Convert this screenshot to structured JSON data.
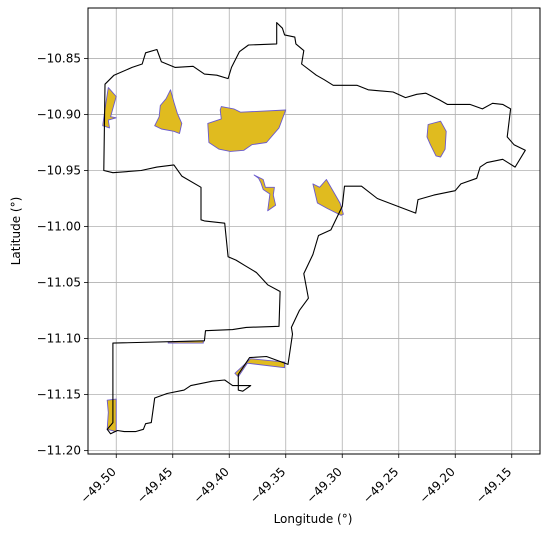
{
  "chart_data": {
    "type": "map",
    "xlabel": "Longitude (°)",
    "ylabel": "Latitude (°)",
    "xlim": [
      -49.525,
      -49.125
    ],
    "ylim": [
      -11.203,
      -10.805
    ],
    "xticks": [
      -49.5,
      -49.45,
      -49.4,
      -49.35,
      -49.3,
      -49.25,
      -49.2,
      -49.15
    ],
    "yticks": [
      -10.85,
      -10.9,
      -10.95,
      -11.0,
      -11.05,
      -11.1,
      -11.15,
      -11.2
    ],
    "xtick_labels": [
      "−49.50",
      "−49.45",
      "−49.40",
      "−49.35",
      "−49.30",
      "−49.25",
      "−49.20",
      "−49.15"
    ],
    "ytick_labels": [
      "−10.85",
      "−10.90",
      "−10.95",
      "−11.00",
      "−11.05",
      "−11.10",
      "−11.15",
      "−11.20"
    ],
    "grid": true,
    "colors": {
      "boundary": "#000000",
      "patch_fill": "#e0bb1f",
      "patch_edge": "#6a5acd",
      "grid": "#b0b0b0"
    },
    "boundary": [
      [
        -49.51,
        -10.873
      ],
      [
        -49.502,
        -10.865
      ],
      [
        -49.486,
        -10.858
      ],
      [
        -49.477,
        -10.855
      ],
      [
        -49.474,
        -10.845
      ],
      [
        -49.464,
        -10.842
      ],
      [
        -49.46,
        -10.853
      ],
      [
        -49.448,
        -10.858
      ],
      [
        -49.432,
        -10.857
      ],
      [
        -49.422,
        -10.864
      ],
      [
        -49.411,
        -10.865
      ],
      [
        -49.401,
        -10.868
      ],
      [
        -49.398,
        -10.858
      ],
      [
        -49.391,
        -10.844
      ],
      [
        -49.383,
        -10.838
      ],
      [
        -49.358,
        -10.837
      ],
      [
        -49.358,
        -10.818
      ],
      [
        -49.353,
        -10.823
      ],
      [
        -49.351,
        -10.829
      ],
      [
        -49.342,
        -10.831
      ],
      [
        -49.341,
        -10.837
      ],
      [
        -49.334,
        -10.843
      ],
      [
        -49.336,
        -10.855
      ],
      [
        -49.323,
        -10.865
      ],
      [
        -49.316,
        -10.869
      ],
      [
        -49.308,
        -10.874
      ],
      [
        -49.287,
        -10.874
      ],
      [
        -49.277,
        -10.878
      ],
      [
        -49.255,
        -10.88
      ],
      [
        -49.244,
        -10.885
      ],
      [
        -49.234,
        -10.882
      ],
      [
        -49.226,
        -10.881
      ],
      [
        -49.214,
        -10.887
      ],
      [
        -49.207,
        -10.891
      ],
      [
        -49.187,
        -10.891
      ],
      [
        -49.176,
        -10.895
      ],
      [
        -49.167,
        -10.89
      ],
      [
        -49.158,
        -10.891
      ],
      [
        -49.151,
        -10.895
      ],
      [
        -49.154,
        -10.92
      ],
      [
        -49.148,
        -10.927
      ],
      [
        -49.138,
        -10.932
      ],
      [
        -49.147,
        -10.947
      ],
      [
        -49.158,
        -10.94
      ],
      [
        -49.172,
        -10.943
      ],
      [
        -49.178,
        -10.947
      ],
      [
        -49.181,
        -10.957
      ],
      [
        -49.195,
        -10.962
      ],
      [
        -49.2,
        -10.968
      ],
      [
        -49.219,
        -10.972
      ],
      [
        -49.233,
        -10.976
      ],
      [
        -49.235,
        -10.988
      ],
      [
        -49.269,
        -10.975
      ],
      [
        -49.283,
        -10.964
      ],
      [
        -49.298,
        -10.964
      ],
      [
        -49.3,
        -10.982
      ],
      [
        -49.31,
        -11.003
      ],
      [
        -49.321,
        -11.008
      ],
      [
        -49.326,
        -11.025
      ],
      [
        -49.334,
        -11.042
      ],
      [
        -49.33,
        -11.064
      ],
      [
        -49.338,
        -11.075
      ],
      [
        -49.345,
        -11.09
      ],
      [
        -49.344,
        -11.096
      ],
      [
        -49.348,
        -11.123
      ],
      [
        -49.367,
        -11.116
      ],
      [
        -49.382,
        -11.117
      ],
      [
        -49.392,
        -11.132
      ],
      [
        -49.392,
        -11.146
      ],
      [
        -49.388,
        -11.147
      ],
      [
        -49.381,
        -11.142
      ],
      [
        -49.397,
        -11.142
      ],
      [
        -49.404,
        -11.137
      ],
      [
        -49.415,
        -11.138
      ],
      [
        -49.434,
        -11.142
      ],
      [
        -49.44,
        -11.146
      ],
      [
        -49.455,
        -11.149
      ],
      [
        -49.466,
        -11.153
      ],
      [
        -49.469,
        -11.175
      ],
      [
        -49.474,
        -11.176
      ],
      [
        -49.476,
        -11.181
      ],
      [
        -49.483,
        -11.183
      ],
      [
        -49.493,
        -11.183
      ],
      [
        -49.499,
        -11.182
      ],
      [
        -49.505,
        -11.185
      ],
      [
        -49.508,
        -11.181
      ],
      [
        -49.503,
        -11.175
      ],
      [
        -49.503,
        -11.104
      ],
      [
        -49.422,
        -11.102
      ],
      [
        -49.421,
        -11.093
      ],
      [
        -49.397,
        -11.092
      ],
      [
        -49.385,
        -11.09
      ],
      [
        -49.356,
        -11.089
      ],
      [
        -49.355,
        -11.058
      ],
      [
        -49.366,
        -11.052
      ],
      [
        -49.376,
        -11.041
      ],
      [
        -49.386,
        -11.035
      ],
      [
        -49.394,
        -11.03
      ],
      [
        -49.401,
        -11.027
      ],
      [
        -49.404,
        -10.997
      ],
      [
        -49.422,
        -10.995
      ],
      [
        -49.425,
        -10.994
      ],
      [
        -49.425,
        -10.965
      ],
      [
        -49.442,
        -10.955
      ],
      [
        -49.449,
        -10.945
      ],
      [
        -49.464,
        -10.947
      ],
      [
        -49.478,
        -10.95
      ],
      [
        -49.503,
        -10.952
      ],
      [
        -49.511,
        -10.95
      ],
      [
        -49.51,
        -10.873
      ]
    ],
    "patches": [
      [
        [
          -49.507,
          -10.876
        ],
        [
          -49.5,
          -10.884
        ],
        [
          -49.505,
          -10.902
        ],
        [
          -49.5,
          -10.903
        ],
        [
          -49.507,
          -10.905
        ],
        [
          -49.506,
          -10.912
        ],
        [
          -49.512,
          -10.91
        ],
        [
          -49.51,
          -10.895
        ],
        [
          -49.507,
          -10.876
        ]
      ],
      [
        [
          -49.456,
          -10.886
        ],
        [
          -49.452,
          -10.878
        ],
        [
          -49.449,
          -10.889
        ],
        [
          -49.446,
          -10.899
        ],
        [
          -49.442,
          -10.908
        ],
        [
          -49.444,
          -10.917
        ],
        [
          -49.449,
          -10.915
        ],
        [
          -49.46,
          -10.913
        ],
        [
          -49.466,
          -10.91
        ],
        [
          -49.462,
          -10.902
        ],
        [
          -49.461,
          -10.892
        ],
        [
          -49.456,
          -10.886
        ]
      ],
      [
        [
          -49.407,
          -10.893
        ],
        [
          -49.396,
          -10.895
        ],
        [
          -49.39,
          -10.898
        ],
        [
          -49.35,
          -10.896
        ],
        [
          -49.356,
          -10.912
        ],
        [
          -49.367,
          -10.925
        ],
        [
          -49.38,
          -10.927
        ],
        [
          -49.387,
          -10.932
        ],
        [
          -49.399,
          -10.933
        ],
        [
          -49.409,
          -10.931
        ],
        [
          -49.418,
          -10.925
        ],
        [
          -49.419,
          -10.908
        ],
        [
          -49.407,
          -10.904
        ],
        [
          -49.408,
          -10.896
        ],
        [
          -49.407,
          -10.893
        ]
      ],
      [
        [
          -49.378,
          -10.954
        ],
        [
          -49.374,
          -10.957
        ],
        [
          -49.372,
          -10.961
        ],
        [
          -49.37,
          -10.967
        ],
        [
          -49.364,
          -10.971
        ],
        [
          -49.366,
          -10.986
        ],
        [
          -49.359,
          -10.981
        ],
        [
          -49.361,
          -10.972
        ],
        [
          -49.36,
          -10.965
        ],
        [
          -49.368,
          -10.965
        ],
        [
          -49.37,
          -10.958
        ],
        [
          -49.378,
          -10.954
        ]
      ],
      [
        [
          -49.326,
          -10.962
        ],
        [
          -49.32,
          -10.965
        ],
        [
          -49.314,
          -10.958
        ],
        [
          -49.302,
          -10.979
        ],
        [
          -49.299,
          -10.989
        ],
        [
          -49.301,
          -10.99
        ],
        [
          -49.313,
          -10.984
        ],
        [
          -49.322,
          -10.979
        ],
        [
          -49.326,
          -10.962
        ]
      ],
      [
        [
          -49.224,
          -10.909
        ],
        [
          -49.213,
          -10.906
        ],
        [
          -49.208,
          -10.915
        ],
        [
          -49.209,
          -10.931
        ],
        [
          -49.213,
          -10.938
        ],
        [
          -49.217,
          -10.937
        ],
        [
          -49.222,
          -10.927
        ],
        [
          -49.225,
          -10.92
        ],
        [
          -49.224,
          -10.909
        ]
      ],
      [
        [
          -49.454,
          -11.103
        ],
        [
          -49.423,
          -11.102
        ],
        [
          -49.423,
          -11.104
        ],
        [
          -49.454,
          -11.104
        ],
        [
          -49.454,
          -11.103
        ]
      ],
      [
        [
          -49.395,
          -11.131
        ],
        [
          -49.381,
          -11.118
        ],
        [
          -49.351,
          -11.121
        ],
        [
          -49.351,
          -11.126
        ],
        [
          -49.384,
          -11.122
        ],
        [
          -49.392,
          -11.134
        ],
        [
          -49.395,
          -11.131
        ]
      ],
      [
        [
          -49.508,
          -11.155
        ],
        [
          -49.5,
          -11.154
        ],
        [
          -49.5,
          -11.183
        ],
        [
          -49.508,
          -11.181
        ],
        [
          -49.507,
          -11.166
        ],
        [
          -49.508,
          -11.155
        ]
      ]
    ]
  }
}
